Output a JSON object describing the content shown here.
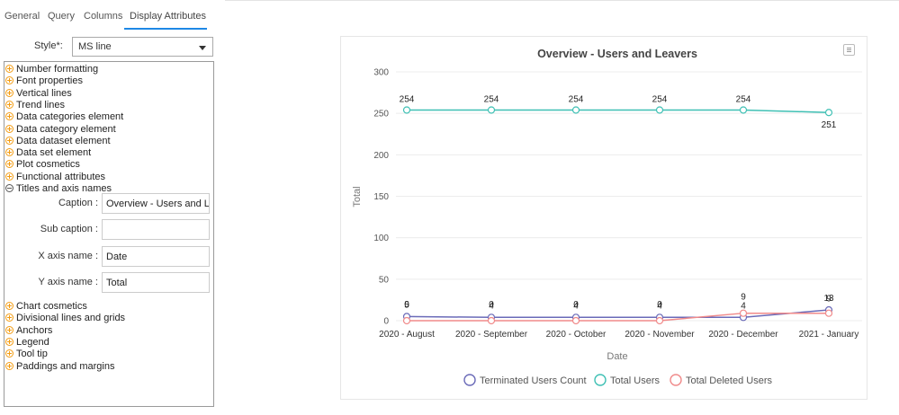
{
  "tabs": [
    {
      "label": "General"
    },
    {
      "label": "Query"
    },
    {
      "label": "Columns"
    },
    {
      "label": "Display Attributes"
    }
  ],
  "style_field": {
    "label": "Style*:",
    "value": "MS line"
  },
  "tree": {
    "groups_top": [
      {
        "label": "Number formatting",
        "state": "collapsed"
      },
      {
        "label": "Font properties",
        "state": "collapsed"
      },
      {
        "label": "Vertical lines",
        "state": "collapsed"
      },
      {
        "label": "Trend lines",
        "state": "collapsed"
      },
      {
        "label": "Data categories element",
        "state": "collapsed"
      },
      {
        "label": "Data category element",
        "state": "collapsed"
      },
      {
        "label": "Data dataset element",
        "state": "collapsed"
      },
      {
        "label": "Data set element",
        "state": "collapsed"
      },
      {
        "label": "Plot cosmetics",
        "state": "collapsed"
      },
      {
        "label": "Functional attributes",
        "state": "collapsed"
      },
      {
        "label": "Titles and axis names",
        "state": "expanded"
      }
    ],
    "fields": [
      {
        "label": "Caption :",
        "value": "Overview - Users and Leavers"
      },
      {
        "label": "Sub caption :",
        "value": ""
      },
      {
        "label": "X axis name :",
        "value": "Date"
      },
      {
        "label": "Y axis name :",
        "value": "Total"
      }
    ],
    "groups_bottom": [
      {
        "label": "Chart cosmetics",
        "state": "collapsed"
      },
      {
        "label": "Divisional lines and grids",
        "state": "collapsed"
      },
      {
        "label": "Anchors",
        "state": "collapsed"
      },
      {
        "label": "Legend",
        "state": "collapsed"
      },
      {
        "label": "Tool tip",
        "state": "collapsed"
      },
      {
        "label": "Paddings and margins",
        "state": "collapsed"
      }
    ]
  },
  "chart_data": {
    "type": "line",
    "title": "Overview - Users and Leavers",
    "xlabel": "Date",
    "ylabel": "Total",
    "categories": [
      "2020 - August",
      "2020 - September",
      "2020 - October",
      "2020 - November",
      "2020 - December",
      "2021 - January"
    ],
    "ylim": [
      0,
      300
    ],
    "yticks": [
      0,
      50,
      100,
      150,
      200,
      250,
      300
    ],
    "grid": true,
    "legend_position": "bottom",
    "series": [
      {
        "name": "Terminated Users Count",
        "color": "#6a6ab8",
        "values": [
          5,
          4,
          4,
          4,
          4,
          13
        ]
      },
      {
        "name": "Total Users",
        "color": "#3fc0b4",
        "values": [
          254,
          254,
          254,
          254,
          254,
          251
        ]
      },
      {
        "name": "Total Deleted Users",
        "color": "#f08a8a",
        "values": [
          0,
          0,
          0,
          0,
          9,
          9
        ]
      }
    ],
    "data_labels": [
      [
        "5",
        "4",
        "4",
        "4",
        "4",
        "13"
      ],
      [
        "254",
        "254",
        "254",
        "254",
        "254",
        "251"
      ],
      [
        "0",
        "0",
        "0",
        "0",
        "9",
        "9"
      ]
    ]
  }
}
